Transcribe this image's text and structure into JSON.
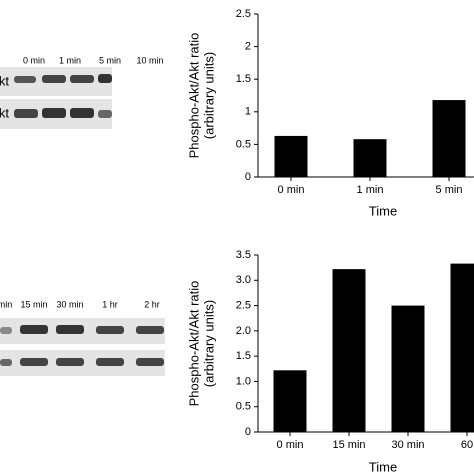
{
  "blots": [
    {
      "lanes": [
        "0 min",
        "1 min",
        "5 min",
        "10 min"
      ],
      "rows": [
        "kt",
        "kt"
      ]
    },
    {
      "lanes": [
        "min",
        "15 min",
        "30 min",
        "1 hr",
        "2 hr"
      ],
      "rows": []
    }
  ],
  "chart_data": [
    {
      "type": "bar",
      "ylabel": [
        "Phospho-Akt/Akt ratio",
        "(arbitrary units)"
      ],
      "xlabel": "Time",
      "categories": [
        "0 min",
        "1 min",
        "5 min"
      ],
      "values": [
        0.63,
        0.58,
        1.18
      ],
      "color": "#000000",
      "ylim": [
        0,
        2.5
      ],
      "yticks": [
        0,
        0.5,
        1,
        1.5,
        2,
        2.5
      ]
    },
    {
      "type": "bar",
      "ylabel": [
        "Phospho-Akt/Akt ratio",
        "(arbitrary units)"
      ],
      "xlabel": "Time",
      "categories": [
        "0 min",
        "15 min",
        "30 min",
        "60"
      ],
      "values": [
        1.22,
        3.22,
        2.5,
        3.33
      ],
      "color": "#000000",
      "ylim": [
        0,
        3.5
      ],
      "yticks": [
        0,
        0.5,
        {
          "value": 1,
          "label": "1.0"
        },
        1.5,
        {
          "value": 2,
          "label": "2.0"
        },
        2.5,
        {
          "value": 3,
          "label": "3.0"
        },
        3.5
      ]
    }
  ]
}
